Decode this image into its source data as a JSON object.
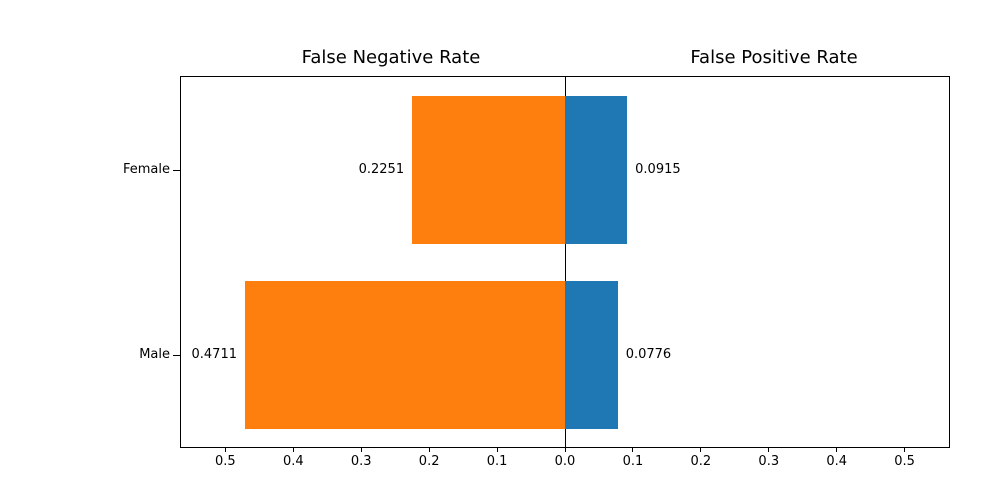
{
  "chart_data": {
    "type": "bar",
    "variant": "diverging-horizontal",
    "left_title": "False Negative Rate",
    "right_title": "False Positive Rate",
    "categories": [
      "Female",
      "Male"
    ],
    "series": [
      {
        "name": "False Negative Rate",
        "side": "left",
        "color": "#ff7f0e",
        "values": [
          0.2251,
          0.4711
        ]
      },
      {
        "name": "False Positive Rate",
        "side": "right",
        "color": "#1f77b4",
        "values": [
          0.0915,
          0.0776
        ]
      }
    ],
    "value_labels": {
      "left": [
        "0.2251",
        "0.4711"
      ],
      "right": [
        "0.0915",
        "0.0776"
      ]
    },
    "x_tick_values": [
      -0.5,
      -0.4,
      -0.3,
      -0.2,
      -0.1,
      0,
      0.1,
      0.2,
      0.3,
      0.4,
      0.5
    ],
    "x_tick_labels": [
      "0.5",
      "0.4",
      "0.3",
      "0.2",
      "0.1",
      "0.0",
      "0.1",
      "0.2",
      "0.3",
      "0.4",
      "0.5"
    ],
    "xlim": [
      -0.56532,
      0.56532
    ],
    "bar_fraction": 0.8,
    "grid": false,
    "legend": "none",
    "axis_color": "#000000",
    "text_color": "#000000",
    "background_color": "#ffffff"
  }
}
